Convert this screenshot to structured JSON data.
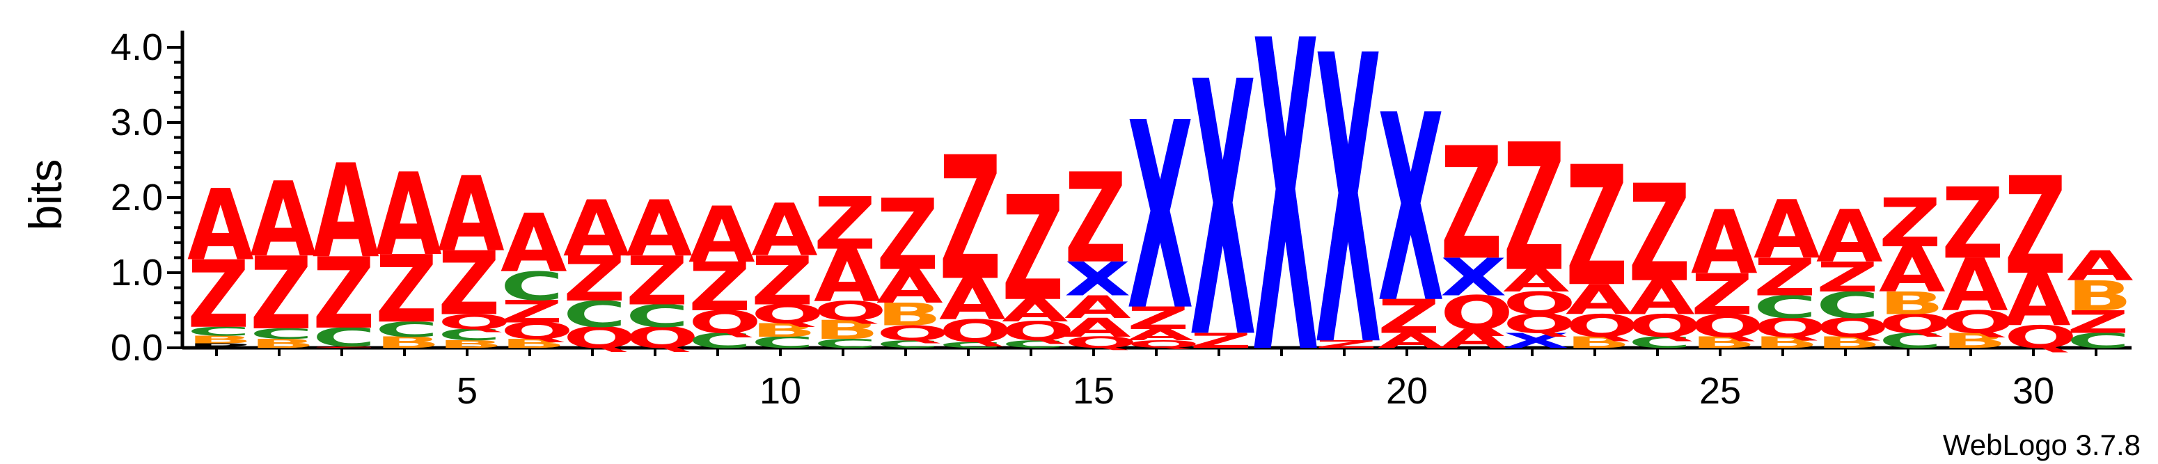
{
  "chart_data": {
    "type": "sequence-logo",
    "ylabel": "bits",
    "ylim": [
      0,
      4.2
    ],
    "yticks": [
      "0.0",
      "1.0",
      "2.0",
      "3.0",
      "4.0"
    ],
    "xticks": [
      5,
      10,
      15,
      20,
      25,
      30
    ],
    "positions_count": 31,
    "footer": "WebLogo 3.7.8",
    "colors": {
      "A": "#ff0000",
      "Z": "#ff0000",
      "Q": "#ff0000",
      "X": "#0000ff",
      "C": "#228b22",
      "B": "#ff8c00"
    },
    "stacks": [
      [
        [
          "P",
          0.06
        ],
        [
          "B",
          0.1
        ],
        [
          "C",
          0.12
        ],
        [
          "Z",
          0.9
        ],
        [
          "A",
          0.95
        ]
      ],
      [
        [
          "B",
          0.12
        ],
        [
          "C",
          0.14
        ],
        [
          "Z",
          0.97
        ],
        [
          "A",
          1.0
        ]
      ],
      [
        [
          "Z",
          0.02
        ],
        [
          "C",
          0.25
        ],
        [
          "Z",
          0.95
        ],
        [
          "A",
          1.25
        ]
      ],
      [
        [
          "B",
          0.15
        ],
        [
          "C",
          0.2
        ],
        [
          "Z",
          0.9
        ],
        [
          "A",
          1.1
        ]
      ],
      [
        [
          "B",
          0.1
        ],
        [
          "C",
          0.15
        ],
        [
          "Q",
          0.2
        ],
        [
          "Z",
          0.85
        ],
        [
          "A",
          1.0
        ]
      ],
      [
        [
          "B",
          0.12
        ],
        [
          "Q",
          0.22
        ],
        [
          "Z",
          0.3
        ],
        [
          "C",
          0.38
        ],
        [
          "A",
          0.78
        ]
      ],
      [
        [
          "Q",
          0.28
        ],
        [
          "C",
          0.35
        ],
        [
          "Z",
          0.6
        ],
        [
          "A",
          0.75
        ]
      ],
      [
        [
          "Q",
          0.28
        ],
        [
          "C",
          0.3
        ],
        [
          "Z",
          0.65
        ],
        [
          "A",
          0.75
        ]
      ],
      [
        [
          "C",
          0.2
        ],
        [
          "Q",
          0.3
        ],
        [
          "Z",
          0.65
        ],
        [
          "A",
          0.75
        ]
      ],
      [
        [
          "C",
          0.15
        ],
        [
          "B",
          0.18
        ],
        [
          "Q",
          0.25
        ],
        [
          "Z",
          0.65
        ],
        [
          "A",
          0.7
        ]
      ],
      [
        [
          "C",
          0.12
        ],
        [
          "B",
          0.25
        ],
        [
          "Q",
          0.25
        ],
        [
          "A",
          0.7
        ],
        [
          "Z",
          0.7
        ]
      ],
      [
        [
          "C",
          0.1
        ],
        [
          "Q",
          0.2
        ],
        [
          "B",
          0.3
        ],
        [
          "A",
          0.45
        ],
        [
          "Z",
          0.95
        ]
      ],
      [
        [
          "C",
          0.08
        ],
        [
          "Q",
          0.3
        ],
        [
          "A",
          0.55
        ],
        [
          "Z",
          1.65
        ]
      ],
      [
        [
          "C",
          0.1
        ],
        [
          "Q",
          0.25
        ],
        [
          "A",
          0.3
        ],
        [
          "Z",
          1.4
        ]
      ],
      [
        [
          "Q",
          0.15
        ],
        [
          "A",
          0.25
        ],
        [
          "A",
          0.3
        ],
        [
          "X",
          0.45
        ],
        [
          "Z",
          1.2
        ]
      ],
      [
        [
          "Q",
          0.1
        ],
        [
          "A",
          0.15
        ],
        [
          "Z",
          0.3
        ],
        [
          "X",
          2.5
        ]
      ],
      [
        [
          "Z",
          0.2
        ],
        [
          "X",
          3.4
        ]
      ],
      [
        [
          "X",
          4.15
        ]
      ],
      [
        [
          "Z",
          0.1
        ],
        [
          "X",
          3.85
        ]
      ],
      [
        [
          "A",
          0.2
        ],
        [
          "Z",
          0.45
        ],
        [
          "X",
          2.5
        ]
      ],
      [
        [
          "A",
          0.25
        ],
        [
          "Q",
          0.45
        ],
        [
          "X",
          0.5
        ],
        [
          "Z",
          1.5
        ]
      ],
      [
        [
          "X",
          0.2
        ],
        [
          "Q",
          0.25
        ],
        [
          "Q",
          0.3
        ],
        [
          "A",
          0.3
        ],
        [
          "Z",
          1.7
        ]
      ],
      [
        [
          "B",
          0.15
        ],
        [
          "Q",
          0.3
        ],
        [
          "A",
          0.4
        ],
        [
          "Z",
          1.6
        ]
      ],
      [
        [
          "C",
          0.15
        ],
        [
          "Q",
          0.3
        ],
        [
          "A",
          0.45
        ],
        [
          "Z",
          1.3
        ]
      ],
      [
        [
          "B",
          0.15
        ],
        [
          "Q",
          0.3
        ],
        [
          "Z",
          0.55
        ],
        [
          "A",
          0.85
        ]
      ],
      [
        [
          "B",
          0.15
        ],
        [
          "Q",
          0.25
        ],
        [
          "C",
          0.3
        ],
        [
          "Z",
          0.5
        ],
        [
          "A",
          0.78
        ]
      ],
      [
        [
          "B",
          0.15
        ],
        [
          "Q",
          0.25
        ],
        [
          "C",
          0.35
        ],
        [
          "Z",
          0.4
        ],
        [
          "A",
          0.7
        ]
      ],
      [
        [
          "C",
          0.2
        ],
        [
          "Q",
          0.25
        ],
        [
          "B",
          0.3
        ],
        [
          "A",
          0.6
        ],
        [
          "Z",
          0.65
        ]
      ],
      [
        [
          "B",
          0.2
        ],
        [
          "Q",
          0.3
        ],
        [
          "A",
          0.7
        ],
        [
          "Z",
          0.95
        ]
      ],
      [
        [
          "Q",
          0.3
        ],
        [
          "A",
          0.7
        ],
        [
          "Z",
          1.3
        ]
      ],
      [
        [
          "C",
          0.2
        ],
        [
          "Z",
          0.3
        ],
        [
          "B",
          0.4
        ],
        [
          "A",
          0.4
        ]
      ]
    ]
  }
}
